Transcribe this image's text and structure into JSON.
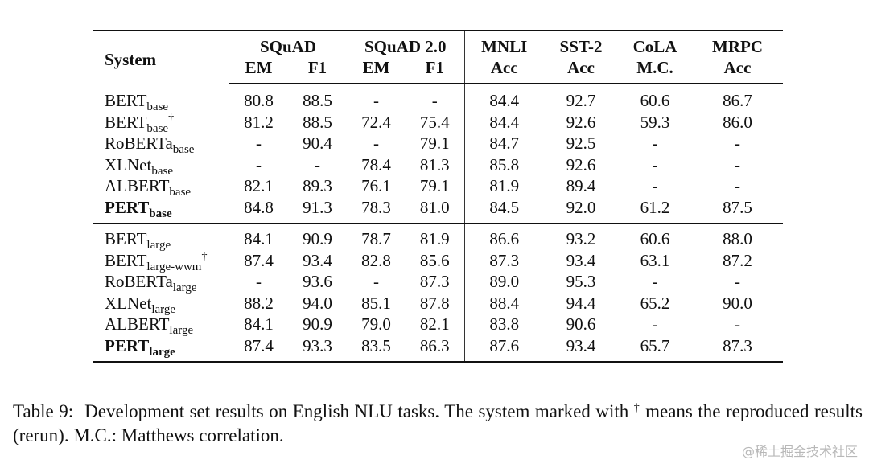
{
  "table": {
    "header": {
      "system": "System",
      "groups": [
        {
          "name": "SQuAD",
          "sub": [
            "EM",
            "F1"
          ]
        },
        {
          "name": "SQuAD 2.0",
          "sub": [
            "EM",
            "F1"
          ]
        },
        {
          "name": "MNLI",
          "sub": [
            "Acc"
          ]
        },
        {
          "name": "SST-2",
          "sub": [
            "Acc"
          ]
        },
        {
          "name": "CoLA",
          "sub": [
            "M.C."
          ]
        },
        {
          "name": "MRPC",
          "sub": [
            "Acc"
          ]
        }
      ]
    },
    "groups": [
      {
        "rows": [
          {
            "name": "BERT",
            "sub": "base",
            "dagger": "",
            "bold_name": false,
            "values": [
              "80.8",
              "88.5",
              "-",
              "-",
              "84.4",
              "92.7",
              "60.6",
              "86.7"
            ],
            "bold": [
              false,
              false,
              false,
              false,
              false,
              true,
              false,
              false
            ]
          },
          {
            "name": "BERT",
            "sub": "base",
            "dagger": "†",
            "bold_name": false,
            "values": [
              "81.2",
              "88.5",
              "72.4",
              "75.4",
              "84.4",
              "92.6",
              "59.3",
              "86.0"
            ],
            "bold": [
              false,
              false,
              false,
              false,
              false,
              false,
              false,
              false
            ]
          },
          {
            "name": "RoBERTa",
            "sub": "base",
            "dagger": "",
            "bold_name": false,
            "values": [
              "-",
              "90.4",
              "-",
              "79.1",
              "84.7",
              "92.5",
              "-",
              "-"
            ],
            "bold": [
              false,
              false,
              false,
              false,
              false,
              false,
              false,
              false
            ]
          },
          {
            "name": "XLNet",
            "sub": "base",
            "dagger": "",
            "bold_name": false,
            "values": [
              "-",
              "-",
              "78.4",
              "81.3",
              "85.8",
              "92.6",
              "-",
              "-"
            ],
            "bold": [
              false,
              false,
              true,
              true,
              true,
              false,
              false,
              false
            ]
          },
          {
            "name": "ALBERT",
            "sub": "base",
            "dagger": "",
            "bold_name": false,
            "values": [
              "82.1",
              "89.3",
              "76.1",
              "79.1",
              "81.9",
              "89.4",
              "-",
              "-"
            ],
            "bold": [
              false,
              false,
              false,
              false,
              false,
              false,
              false,
              false
            ]
          },
          {
            "name": "PERT",
            "sub": "base",
            "dagger": "",
            "bold_name": true,
            "values": [
              "84.8",
              "91.3",
              "78.3",
              "81.0",
              "84.5",
              "92.0",
              "61.2",
              "87.5"
            ],
            "bold": [
              true,
              true,
              false,
              false,
              false,
              false,
              true,
              true
            ]
          }
        ]
      },
      {
        "rows": [
          {
            "name": "BERT",
            "sub": "large",
            "dagger": "",
            "bold_name": false,
            "values": [
              "84.1",
              "90.9",
              "78.7",
              "81.9",
              "86.6",
              "93.2",
              "60.6",
              "88.0"
            ],
            "bold": [
              false,
              false,
              false,
              false,
              false,
              false,
              false,
              false
            ]
          },
          {
            "name": "BERT",
            "sub": "large-wwm",
            "dagger": "†",
            "bold_name": false,
            "values": [
              "87.4",
              "93.4",
              "82.8",
              "85.6",
              "87.3",
              "93.4",
              "63.1",
              "87.2"
            ],
            "bold": [
              false,
              false,
              false,
              false,
              false,
              false,
              false,
              false
            ]
          },
          {
            "name": "RoBERTa",
            "sub": "large",
            "dagger": "",
            "bold_name": false,
            "values": [
              "-",
              "93.6",
              "-",
              "87.3",
              "89.0",
              "95.3",
              "-",
              "-"
            ],
            "bold": [
              false,
              false,
              false,
              false,
              true,
              true,
              false,
              false
            ]
          },
          {
            "name": "XLNet",
            "sub": "large",
            "dagger": "",
            "bold_name": false,
            "values": [
              "88.2",
              "94.0",
              "85.1",
              "87.8",
              "88.4",
              "94.4",
              "65.2",
              "90.0"
            ],
            "bold": [
              true,
              true,
              true,
              true,
              false,
              false,
              false,
              true
            ]
          },
          {
            "name": "ALBERT",
            "sub": "large",
            "dagger": "",
            "bold_name": false,
            "values": [
              "84.1",
              "90.9",
              "79.0",
              "82.1",
              "83.8",
              "90.6",
              "-",
              "-"
            ],
            "bold": [
              false,
              false,
              false,
              false,
              false,
              false,
              false,
              false
            ]
          },
          {
            "name": "PERT",
            "sub": "large",
            "dagger": "",
            "bold_name": true,
            "values": [
              "87.4",
              "93.3",
              "83.5",
              "86.3",
              "87.6",
              "93.4",
              "65.7",
              "87.3"
            ],
            "bold": [
              false,
              false,
              false,
              false,
              false,
              false,
              true,
              false
            ]
          }
        ]
      }
    ]
  },
  "caption": {
    "label": "Table 9:",
    "text_before": "Development set results on English NLU tasks.  The system marked with ",
    "dagger": "†",
    "text_after": " means the reproduced results (rerun). M.C.: Matthews correlation."
  },
  "watermark": "@稀土掘金技术社区"
}
